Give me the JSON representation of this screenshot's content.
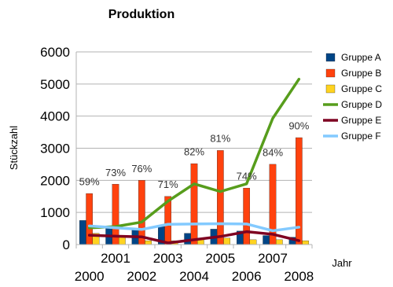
{
  "chart_data": {
    "type": "bar",
    "title": "Produktion",
    "xlabel": "Jahr",
    "ylabel": "Stückzahl",
    "ylim": [
      0,
      6000
    ],
    "yticks": [
      "0",
      "1000",
      "2000",
      "3000",
      "4000",
      "5000",
      "6000"
    ],
    "categories": [
      "2000",
      "2001",
      "2002",
      "2003",
      "2004",
      "2005",
      "2006",
      "2007",
      "2008"
    ],
    "grid": "horizontal",
    "legend_position": "right",
    "series": [
      {
        "name": "Gruppe A",
        "kind": "bar",
        "color": "#004586",
        "values": [
          750,
          500,
          480,
          560,
          350,
          480,
          420,
          280,
          230
        ]
      },
      {
        "name": "Gruppe B",
        "kind": "bar",
        "color": "#ff420e",
        "values": [
          1590,
          1880,
          2000,
          1500,
          2520,
          2930,
          1760,
          2500,
          3330
        ]
      },
      {
        "name": "Gruppe C",
        "kind": "bar",
        "color": "#ffd320",
        "values": [
          350,
          270,
          120,
          120,
          150,
          200,
          150,
          150,
          120
        ]
      },
      {
        "name": "Gruppe D",
        "kind": "line",
        "color": "#579d1c",
        "values": [
          520,
          560,
          700,
          1350,
          1890,
          1650,
          1890,
          3930,
          5150
        ]
      },
      {
        "name": "Gruppe E",
        "kind": "line",
        "color": "#7e0021",
        "values": [
          290,
          260,
          240,
          50,
          150,
          250,
          400,
          320,
          120
        ]
      },
      {
        "name": "Gruppe F",
        "kind": "line",
        "color": "#83caff",
        "values": [
          580,
          520,
          470,
          630,
          640,
          650,
          640,
          430,
          540
        ]
      }
    ],
    "annotations": [
      {
        "category": "2000",
        "text": "59%",
        "y": 1850
      },
      {
        "category": "2001",
        "text": "73%",
        "y": 2130
      },
      {
        "category": "2002",
        "text": "76%",
        "y": 2250
      },
      {
        "category": "2003",
        "text": "71%",
        "y": 1760
      },
      {
        "category": "2004",
        "text": "82%",
        "y": 2780
      },
      {
        "category": "2005",
        "text": "81%",
        "y": 3190
      },
      {
        "category": "2006",
        "text": "74%",
        "y": 2020
      },
      {
        "category": "2007",
        "text": "84%",
        "y": 2760
      },
      {
        "category": "2008",
        "text": "90%",
        "y": 3590
      }
    ]
  }
}
